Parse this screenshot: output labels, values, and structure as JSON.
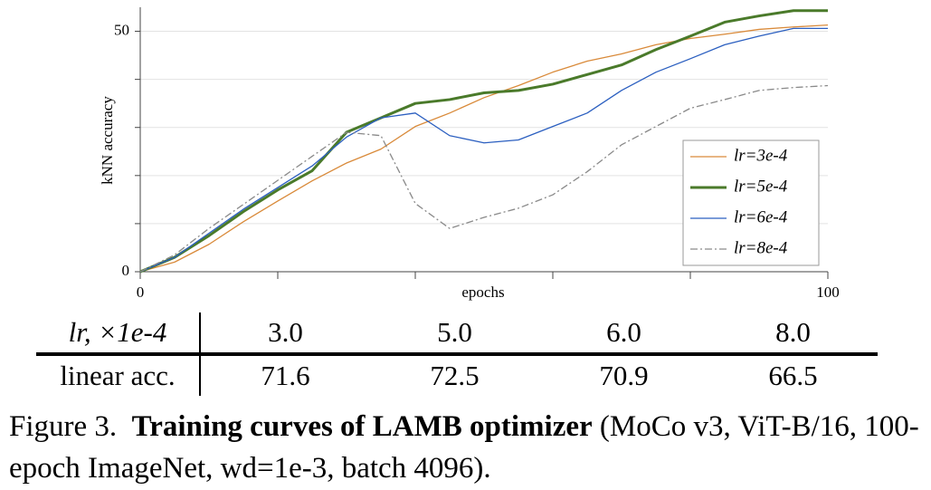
{
  "chart_data": {
    "type": "line",
    "xlabel": "epochs",
    "ylabel": "kNN accuracy",
    "x": [
      0,
      5,
      10,
      15,
      20,
      25,
      30,
      35,
      40,
      45,
      50,
      55,
      60,
      65,
      70,
      75,
      80,
      85,
      90,
      95,
      100
    ],
    "xlim": [
      0,
      100
    ],
    "xticks": [
      0,
      100
    ],
    "minor_xticks": [
      20,
      40,
      60,
      80
    ],
    "ylim": [
      0,
      55
    ],
    "yticks": [
      0,
      50
    ],
    "minor_yticks": [
      10,
      20,
      30,
      40
    ],
    "grid": true,
    "legend": "lower right",
    "series": [
      {
        "name": "lr=3e-4",
        "color": "#d98a3a",
        "width": 1.3,
        "dash": "none",
        "values": [
          0,
          2,
          5.7,
          10.4,
          14.7,
          18.9,
          22.6,
          25.5,
          30.2,
          33,
          36.2,
          38.7,
          41.5,
          43.8,
          45.3,
          47.2,
          48.5,
          49.4,
          50.4,
          50.9,
          51.3
        ]
      },
      {
        "name": "lr=5e-4",
        "color": "#4a7a2a",
        "width": 3,
        "dash": "none",
        "values": [
          0,
          3,
          7.5,
          12.5,
          17,
          21,
          29,
          32,
          35,
          35.8,
          37.2,
          37.7,
          39,
          41,
          43,
          46.2,
          49,
          51.9,
          53.2,
          54.3,
          54.3
        ]
      },
      {
        "name": "lr=6e-4",
        "color": "#2b5fc0",
        "width": 1.3,
        "dash": "none",
        "values": [
          0,
          3,
          8,
          13,
          17.5,
          22,
          28,
          32,
          33,
          28.3,
          26.8,
          27.4,
          30.2,
          33,
          37.7,
          41.5,
          44.3,
          47.2,
          49,
          50.6,
          50.6
        ]
      },
      {
        "name": "lr=8e-4",
        "color": "#8a8a8a",
        "width": 1.3,
        "dash": "8 3 2 3",
        "values": [
          0,
          3.5,
          9,
          14,
          19,
          24,
          29,
          28.3,
          14.2,
          9,
          11.3,
          13.2,
          16,
          20.8,
          26.4,
          30.2,
          34,
          35.8,
          37.7,
          38.3,
          38.7
        ]
      }
    ]
  },
  "table": {
    "header": [
      "lr, ×1e-4",
      "3.0",
      "5.0",
      "6.0",
      "8.0"
    ],
    "rows": [
      [
        "linear acc.",
        "71.6",
        "72.5",
        "70.9",
        "66.5"
      ]
    ]
  },
  "caption": {
    "label": "Figure 3.",
    "title": "Training curves of LAMB optimizer",
    "text": "(MoCo v3, ViT-B/16, 100-epoch ImageNet, wd=1e-3, batch 4096)."
  }
}
